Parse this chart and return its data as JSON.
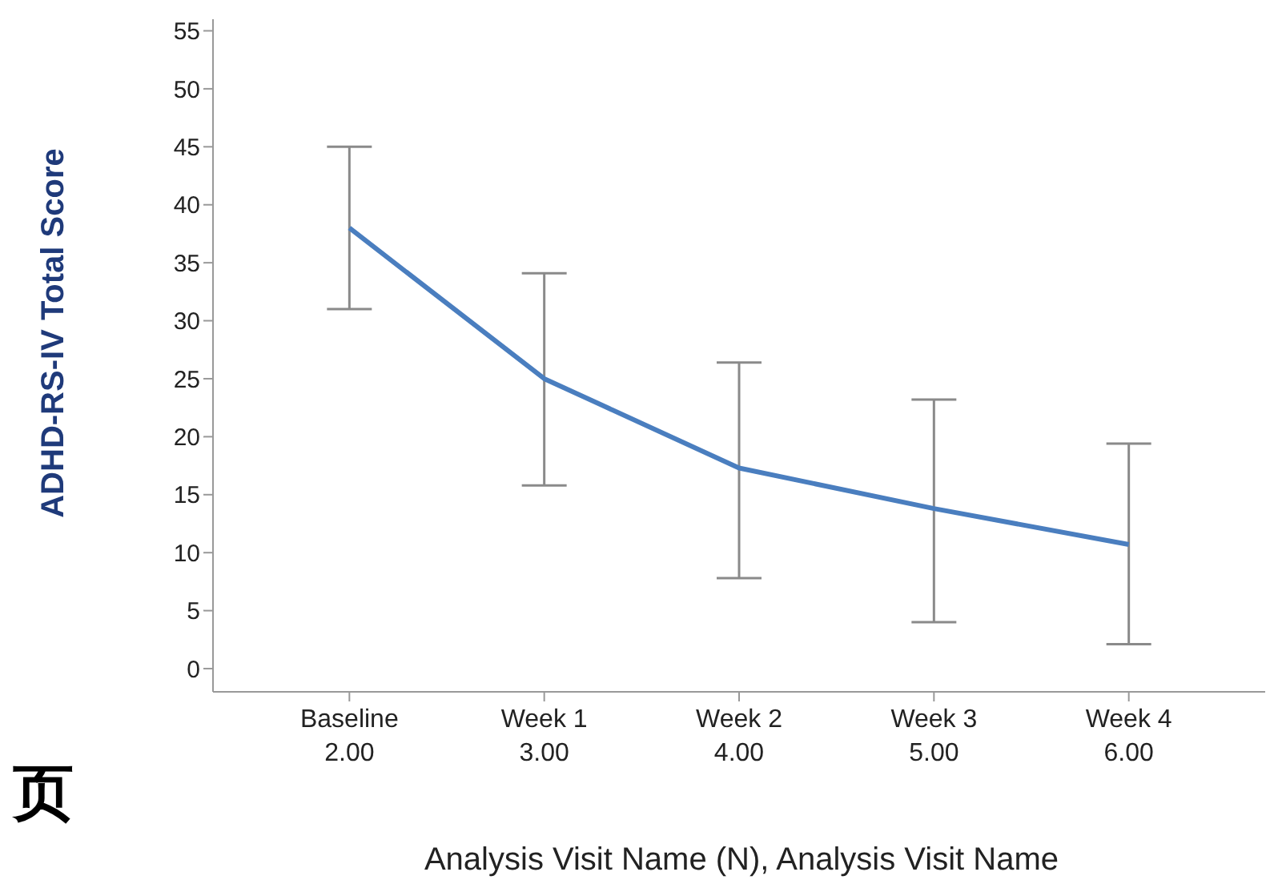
{
  "chart_data": {
    "type": "line",
    "ylabel": "ADHD-RS-IV Total Score",
    "xlabel": "Analysis Visit Name (N), Analysis Visit Name",
    "categories": [
      "Baseline\n2.00",
      "Week 1\n3.00",
      "Week 2\n4.00",
      "Week 3\n5.00",
      "Week 4\n6.00"
    ],
    "series": [
      {
        "color": "#4a7ebf",
        "values": [
          38,
          25,
          17.3,
          13.8,
          10.7
        ],
        "errors": [
          [
            31,
            45
          ],
          [
            15.8,
            34.1
          ],
          [
            7.8,
            26.4
          ],
          [
            4,
            23.2
          ],
          [
            2.1,
            19.4
          ]
        ]
      }
    ],
    "ylim": [
      -2,
      56
    ],
    "yticks": [
      0,
      5,
      10,
      15,
      20,
      25,
      30,
      35,
      40,
      45,
      50,
      55
    ],
    "grid": false,
    "legend": false,
    "marker": "none",
    "line_style": "solid",
    "annotations": [
      "页"
    ]
  }
}
